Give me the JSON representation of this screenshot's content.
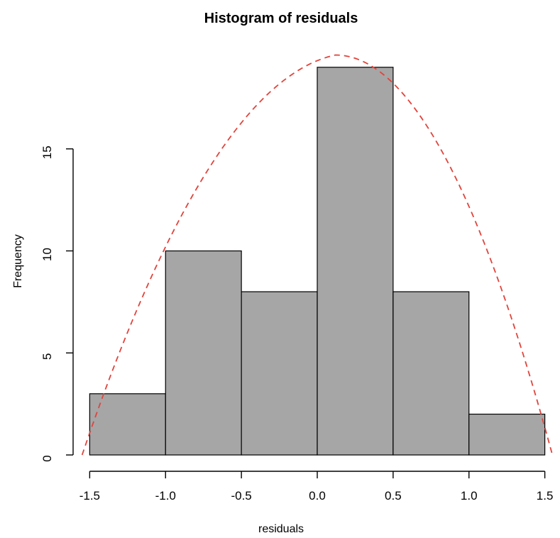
{
  "chart_data": {
    "type": "histogram",
    "title": "Histogram of residuals",
    "xlabel": "residuals",
    "ylabel": "Frequency",
    "bins": [
      {
        "start": -1.5,
        "end": -1.0,
        "count": 3
      },
      {
        "start": -1.0,
        "end": -0.5,
        "count": 10
      },
      {
        "start": -0.5,
        "end": 0.0,
        "count": 8
      },
      {
        "start": 0.0,
        "end": 0.5,
        "count": 19
      },
      {
        "start": 0.5,
        "end": 1.0,
        "count": 8
      },
      {
        "start": 1.0,
        "end": 1.5,
        "count": 2
      }
    ],
    "x_ticks": [
      -1.5,
      -1.0,
      -0.5,
      0.0,
      0.5,
      1.0,
      1.5
    ],
    "x_tick_labels": [
      "-1.5",
      "-1.0",
      "-0.5",
      "0.0",
      "0.5",
      "1.0",
      "1.5"
    ],
    "y_ticks": [
      0,
      5,
      10,
      15
    ],
    "y_tick_labels": [
      "0",
      "5",
      "10",
      "15"
    ],
    "xlim": [
      -1.6,
      1.6
    ],
    "ylim": [
      0,
      20
    ],
    "curve": {
      "style": "dashed",
      "color": "#e0443c",
      "points": [
        {
          "x": -1.55,
          "y": 0.0
        },
        {
          "x": -1.0,
          "y": 10.2
        },
        {
          "x": 0.12,
          "y": 19.6
        },
        {
          "x": 1.55,
          "y": 0.0
        }
      ]
    },
    "colors": {
      "bar_fill": "#a6a6a6",
      "bar_stroke": "#000000",
      "axis": "#000000",
      "curve": "#e0443c"
    },
    "grid": false
  }
}
